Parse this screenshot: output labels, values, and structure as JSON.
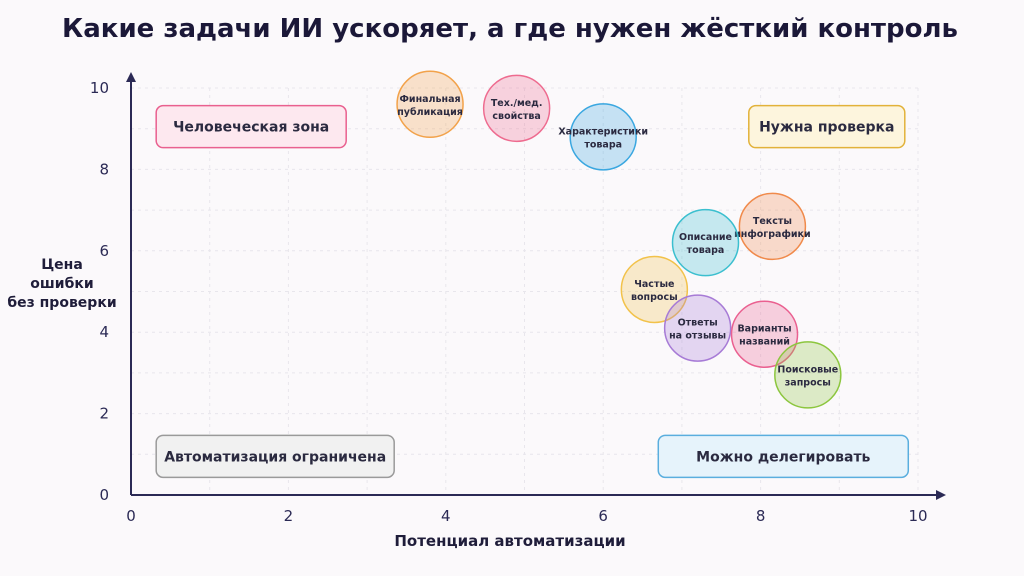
{
  "title": "Какие задачи ИИ ускоряет, а где нужен жёсткий контроль",
  "chart_data": {
    "type": "scatter",
    "title": "Какие задачи ИИ ускоряет, а где нужен жёсткий контроль",
    "xlabel": "Потенциал автоматизации",
    "ylabel_lines": [
      "Цена",
      "ошибки",
      "без проверки"
    ],
    "xlim": [
      0,
      10
    ],
    "ylim": [
      0,
      10
    ],
    "xticks": [
      "0",
      "2",
      "4",
      "6",
      "8",
      "10"
    ],
    "yticks": [
      "0",
      "2",
      "4",
      "6",
      "8",
      "10"
    ],
    "grid": true,
    "quadrant_labels": [
      {
        "text": "Человеческая зона",
        "position": "top-left",
        "color": "#e9608f",
        "fill": "#fde8ef"
      },
      {
        "text": "Нужна проверка",
        "position": "top-right",
        "color": "#e2b23a",
        "fill": "#fdf5dd"
      },
      {
        "text": "Автоматизация ограничена",
        "position": "bottom-left",
        "color": "#9a9a9a",
        "fill": "#f1f1f1"
      },
      {
        "text": "Можно делегировать",
        "position": "bottom-right",
        "color": "#5aaede",
        "fill": "#e6f3fb"
      }
    ],
    "points": [
      {
        "label": "Финальная публикация",
        "lines": [
          "Финальная",
          "публикация"
        ],
        "x": 3.8,
        "y": 9.6,
        "color": "#f2a24a"
      },
      {
        "label": "Тех./мед. свойства",
        "lines": [
          "Тех./мед.",
          "свойства"
        ],
        "x": 4.9,
        "y": 9.5,
        "color": "#ee6b8f"
      },
      {
        "label": "Характеристики товара",
        "lines": [
          "Характеристики",
          "товара"
        ],
        "x": 6.0,
        "y": 8.8,
        "color": "#3aa7e0"
      },
      {
        "label": "Тексты инфографики",
        "lines": [
          "Тексты",
          "инфографики"
        ],
        "x": 8.15,
        "y": 6.6,
        "color": "#f08a4b"
      },
      {
        "label": "Описание товара",
        "lines": [
          "Описание",
          "товара"
        ],
        "x": 7.3,
        "y": 6.2,
        "color": "#3bbfcf"
      },
      {
        "label": "Частые вопросы",
        "lines": [
          "Частые",
          "вопросы"
        ],
        "x": 6.65,
        "y": 5.05,
        "color": "#f2c24a"
      },
      {
        "label": "Ответы на отзывы",
        "lines": [
          "Ответы",
          "на отзывы"
        ],
        "x": 7.2,
        "y": 4.1,
        "color": "#a77bd6"
      },
      {
        "label": "Варианты названий",
        "lines": [
          "Варианты",
          "названий"
        ],
        "x": 8.05,
        "y": 3.95,
        "color": "#ea6090"
      },
      {
        "label": "Поисковые запросы",
        "lines": [
          "Поисковые",
          "запросы"
        ],
        "x": 8.6,
        "y": 2.95,
        "color": "#8cc63e"
      }
    ]
  }
}
